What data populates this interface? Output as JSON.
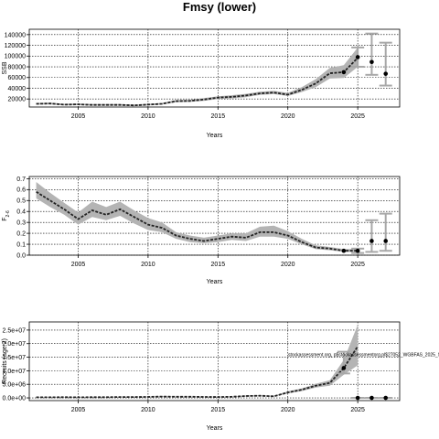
{
  "figure": {
    "title": "Fmsy (lower)"
  },
  "chart_data": [
    {
      "type": "line",
      "id": "ssb",
      "xlabel": "Years",
      "ylabel": "SSB",
      "xlim": [
        2001.5,
        2028
      ],
      "ylim": [
        5000,
        150000
      ],
      "xticks": [
        2005,
        2010,
        2015,
        2020,
        2025
      ],
      "yticks": [
        20000,
        40000,
        60000,
        80000,
        100000,
        120000,
        140000
      ],
      "ytick_labels": [
        "20000",
        "40000",
        "60000",
        "80000",
        "100000",
        "120000",
        "140000"
      ],
      "grid": true,
      "x": [
        2002,
        2003,
        2004,
        2005,
        2006,
        2007,
        2008,
        2009,
        2010,
        2011,
        2012,
        2013,
        2014,
        2015,
        2016,
        2017,
        2018,
        2019,
        2020,
        2021,
        2022,
        2023,
        2024,
        2025
      ],
      "median": [
        11000,
        11500,
        9500,
        10000,
        9000,
        9000,
        9000,
        8000,
        9500,
        11000,
        16000,
        16500,
        19000,
        22500,
        24000,
        26500,
        30500,
        32000,
        28000,
        37000,
        49000,
        68000,
        70000,
        97000
      ],
      "lower": [
        9500,
        10000,
        8000,
        8500,
        7500,
        7500,
        7500,
        6500,
        8000,
        9500,
        14000,
        14500,
        16500,
        20000,
        21000,
        23500,
        27500,
        29000,
        25500,
        33000,
        42000,
        58000,
        59000,
        80000
      ],
      "upper": [
        12500,
        13000,
        11000,
        11500,
        10500,
        10500,
        10500,
        9500,
        11000,
        12500,
        18000,
        18500,
        21500,
        25000,
        27000,
        29500,
        33500,
        35000,
        31500,
        42000,
        57000,
        78000,
        83000,
        116000
      ],
      "points": [
        {
          "x": 2024,
          "y": 70000
        },
        {
          "x": 2025,
          "y": 98000
        },
        {
          "x": 2026,
          "y": 89000
        },
        {
          "x": 2027,
          "y": 67000
        }
      ],
      "errorbars": [
        {
          "x": 2025,
          "lo": 80000,
          "hi": 116000
        },
        {
          "x": 2026,
          "lo": 65000,
          "hi": 142000
        },
        {
          "x": 2027,
          "lo": 45000,
          "hi": 125000
        }
      ]
    },
    {
      "type": "line",
      "id": "f",
      "xlabel": "Years",
      "ylabel": "F",
      "ylabel_sub": "2-6",
      "xlim": [
        2001.5,
        2028
      ],
      "ylim": [
        0,
        0.72
      ],
      "xticks": [
        2005,
        2010,
        2015,
        2020,
        2025
      ],
      "yticks": [
        0,
        0.1,
        0.2,
        0.3,
        0.4,
        0.5,
        0.6,
        0.7
      ],
      "ytick_labels": [
        "0.0",
        "0.1",
        "0.2",
        "0.3",
        "0.4",
        "0.5",
        "0.6",
        "0.7"
      ],
      "grid": true,
      "x": [
        2002,
        2003,
        2004,
        2005,
        2006,
        2007,
        2008,
        2009,
        2010,
        2011,
        2012,
        2013,
        2014,
        2015,
        2016,
        2017,
        2018,
        2019,
        2020,
        2021,
        2022,
        2023,
        2024,
        2025
      ],
      "median": [
        0.58,
        0.5,
        0.42,
        0.33,
        0.41,
        0.37,
        0.42,
        0.35,
        0.28,
        0.25,
        0.18,
        0.15,
        0.13,
        0.15,
        0.17,
        0.16,
        0.21,
        0.21,
        0.18,
        0.12,
        0.07,
        0.06,
        0.04,
        0.04
      ],
      "lower": [
        0.52,
        0.44,
        0.37,
        0.28,
        0.35,
        0.32,
        0.36,
        0.29,
        0.23,
        0.21,
        0.15,
        0.12,
        0.11,
        0.12,
        0.14,
        0.13,
        0.17,
        0.17,
        0.15,
        0.1,
        0.055,
        0.045,
        0.03,
        0.03
      ],
      "upper": [
        0.67,
        0.57,
        0.48,
        0.39,
        0.49,
        0.44,
        0.49,
        0.41,
        0.34,
        0.3,
        0.21,
        0.18,
        0.16,
        0.18,
        0.2,
        0.2,
        0.26,
        0.27,
        0.22,
        0.15,
        0.09,
        0.075,
        0.055,
        0.055
      ],
      "points": [
        {
          "x": 2024,
          "y": 0.04
        },
        {
          "x": 2025,
          "y": 0.04
        },
        {
          "x": 2026,
          "y": 0.13
        },
        {
          "x": 2027,
          "y": 0.13
        }
      ],
      "errorbars": [
        {
          "x": 2025,
          "lo": 0.02,
          "hi": 0.06
        },
        {
          "x": 2026,
          "lo": 0.03,
          "hi": 0.32
        },
        {
          "x": 2027,
          "lo": 0.04,
          "hi": 0.38
        }
      ]
    },
    {
      "type": "line",
      "id": "rec",
      "xlabel": "Years",
      "ylabel": "Recruits (age 2)",
      "xlim": [
        2001.5,
        2028
      ],
      "ylim": [
        -1000000,
        28000000
      ],
      "xticks": [
        2005,
        2010,
        2015,
        2020,
        2025
      ],
      "yticks": [
        0,
        5000000,
        10000000,
        15000000,
        20000000,
        25000000
      ],
      "ytick_labels": [
        "0.0e+00",
        "5.0e+06",
        "1.0e+07",
        "1.5e+07",
        "2.0e+07",
        "2.5e+07"
      ],
      "grid": true,
      "annotation": "stockassessment.org, p$stockassessmentorg.pl$27052_WGBFAS_2025_SA.r19059_g6 1ce",
      "x": [
        2002,
        2003,
        2004,
        2005,
        2006,
        2007,
        2008,
        2009,
        2010,
        2011,
        2012,
        2013,
        2014,
        2015,
        2016,
        2017,
        2018,
        2019,
        2020,
        2021,
        2022,
        2023,
        2024,
        2025
      ],
      "median": [
        200000,
        200000,
        250000,
        200000,
        250000,
        250000,
        300000,
        300000,
        350000,
        500000,
        400000,
        400000,
        350000,
        300000,
        400000,
        700000,
        800000,
        600000,
        2000000,
        3000000,
        4500000,
        5500000,
        11000000,
        19000000
      ],
      "lower": [
        100000,
        100000,
        150000,
        100000,
        150000,
        150000,
        200000,
        200000,
        250000,
        350000,
        300000,
        300000,
        250000,
        200000,
        300000,
        500000,
        600000,
        450000,
        1600000,
        2500000,
        3800000,
        4500000,
        8500000,
        12000000
      ],
      "upper": [
        300000,
        300000,
        350000,
        300000,
        350000,
        350000,
        400000,
        400000,
        450000,
        650000,
        500000,
        500000,
        450000,
        400000,
        500000,
        900000,
        1000000,
        750000,
        2400000,
        3500000,
        5200000,
        6500000,
        14000000,
        27000000
      ],
      "points": [
        {
          "x": 2024,
          "y": 11000000
        },
        {
          "x": 2025,
          "y": 0
        },
        {
          "x": 2026,
          "y": 0
        },
        {
          "x": 2027,
          "y": 0
        }
      ],
      "errorbars": [
        {
          "x": 2024,
          "lo": 9000000,
          "hi": 17000000
        },
        {
          "x": 2025,
          "lo": 0,
          "hi": 0
        },
        {
          "x": 2026,
          "lo": 0,
          "hi": 0
        },
        {
          "x": 2027,
          "lo": 0,
          "hi": 0
        }
      ]
    }
  ]
}
